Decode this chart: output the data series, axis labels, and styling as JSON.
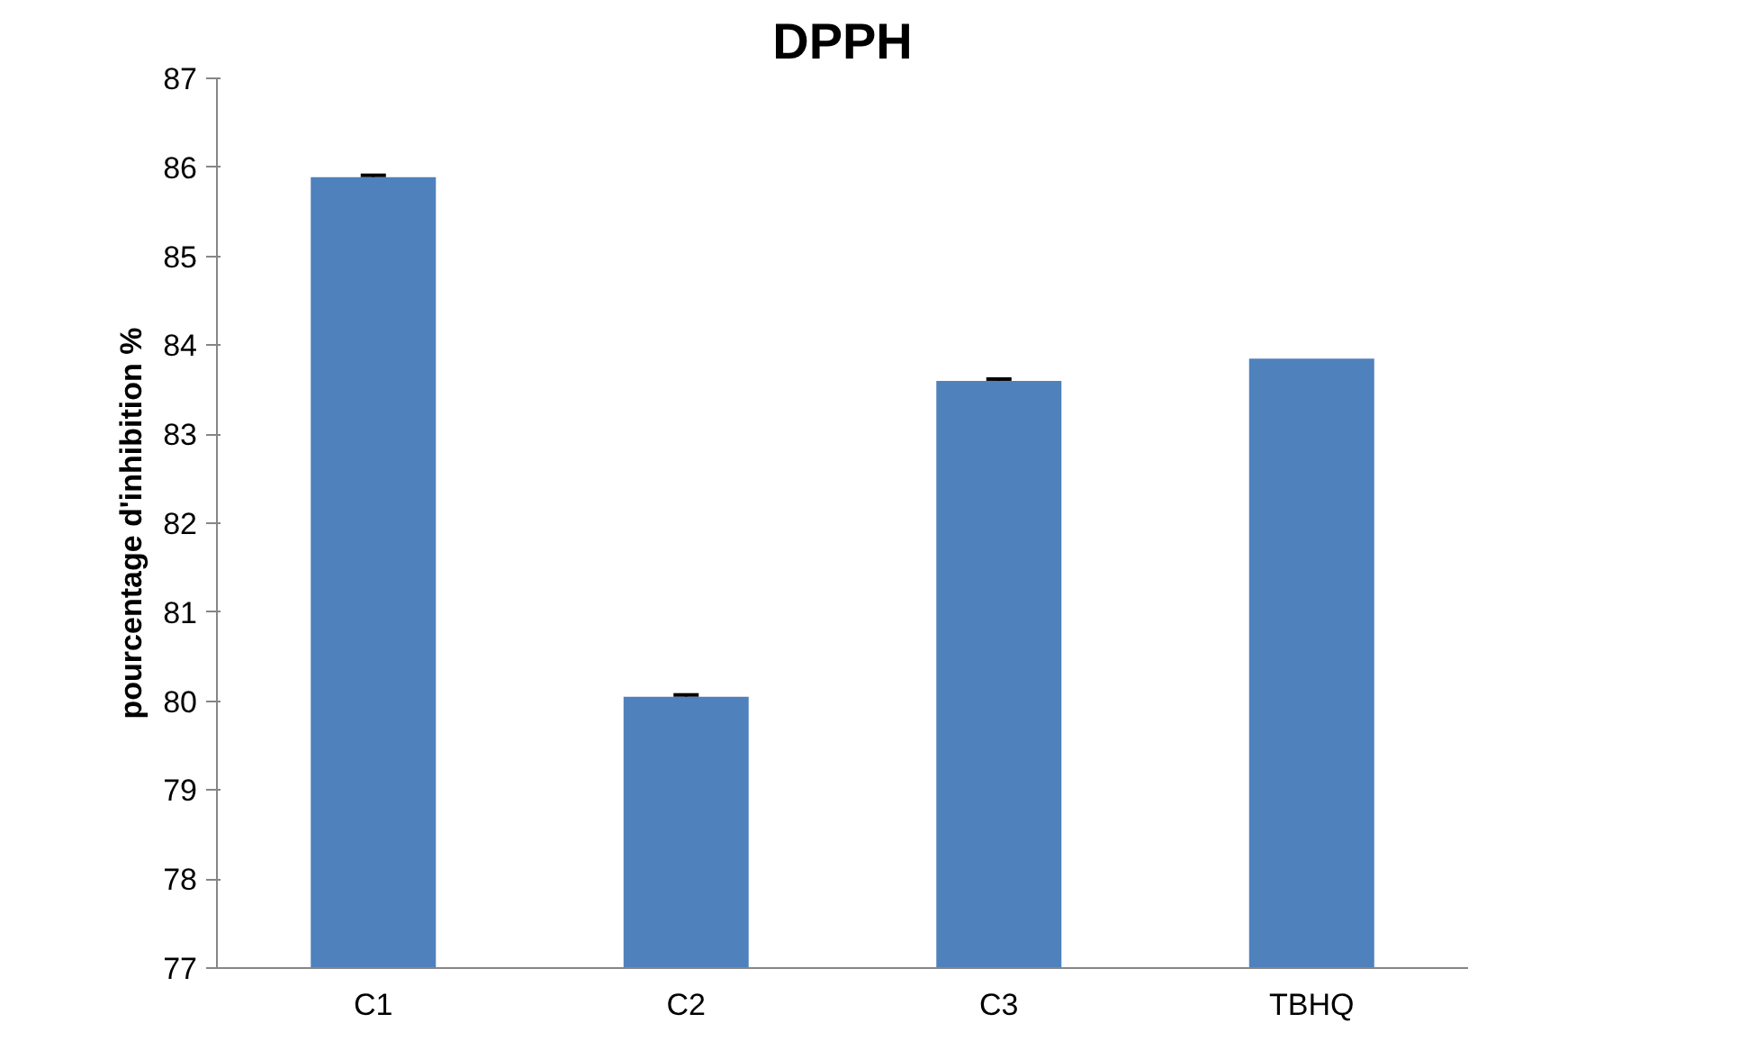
{
  "chart_data": {
    "type": "bar",
    "title": "DPPH",
    "ylabel": "pourcentage d'inhibition %",
    "categories": [
      "C1",
      "C2",
      "C3",
      "TBHQ"
    ],
    "values": [
      85.89,
      80.05,
      83.6,
      83.85
    ],
    "errors": [
      0.02,
      0.02,
      0.02,
      null
    ],
    "color": "#4f81bd",
    "ylim": [
      77,
      87
    ],
    "yticks": [
      77,
      78,
      79,
      80,
      81,
      82,
      83,
      84,
      85,
      86,
      87
    ],
    "grid": false
  }
}
